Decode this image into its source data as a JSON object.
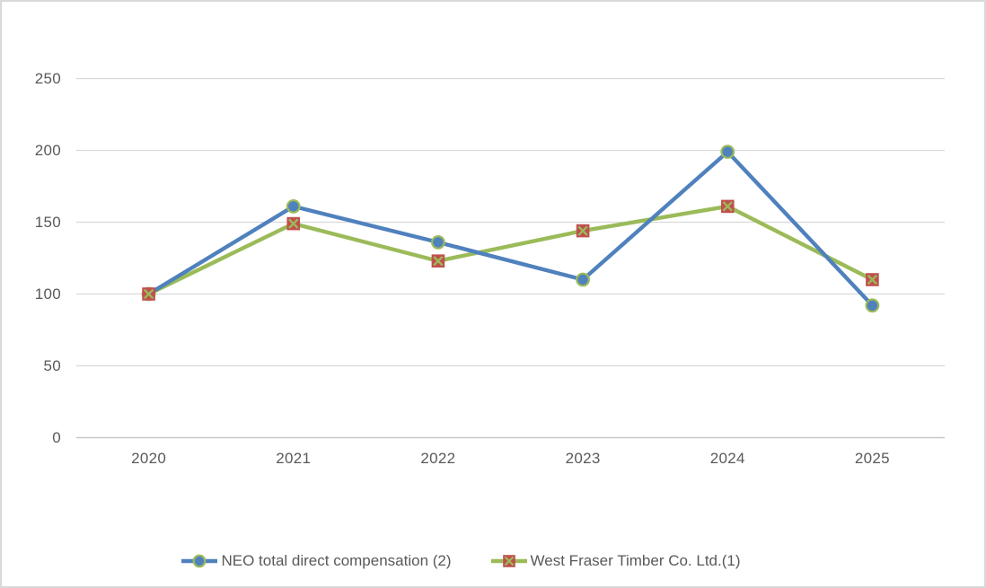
{
  "chart_data": {
    "type": "line",
    "title": "",
    "categories": [
      "2020",
      "2021",
      "2022",
      "2023",
      "2024",
      "2025"
    ],
    "series": [
      {
        "name": "NEO total direct compensation (2)",
        "values": [
          100,
          161,
          136,
          110,
          199,
          92
        ],
        "color": "#4F81BD",
        "marker": "circle",
        "marker_fill": "#4F81BD",
        "marker_stroke": "#9BBB59"
      },
      {
        "name": "West Fraser Timber Co. Ltd.(1)",
        "values": [
          100,
          149,
          123,
          144,
          161,
          110
        ],
        "color": "#9BBB59",
        "marker": "x-square",
        "marker_fill": "#C0504D",
        "marker_stroke": "#9BBB59"
      }
    ],
    "xlabel": "",
    "ylabel": "",
    "ylim": [
      0,
      250
    ],
    "y_ticks": [
      0,
      50,
      100,
      150,
      200,
      250
    ],
    "grid": true,
    "legend_position": "bottom",
    "colors": {
      "gridline": "#D9D9D9",
      "axis_line": "#C8C8C8",
      "tick_label": "#595959",
      "legend_text": "#595959",
      "background": "#FFFFFF",
      "border": "#D9D9D9"
    }
  }
}
